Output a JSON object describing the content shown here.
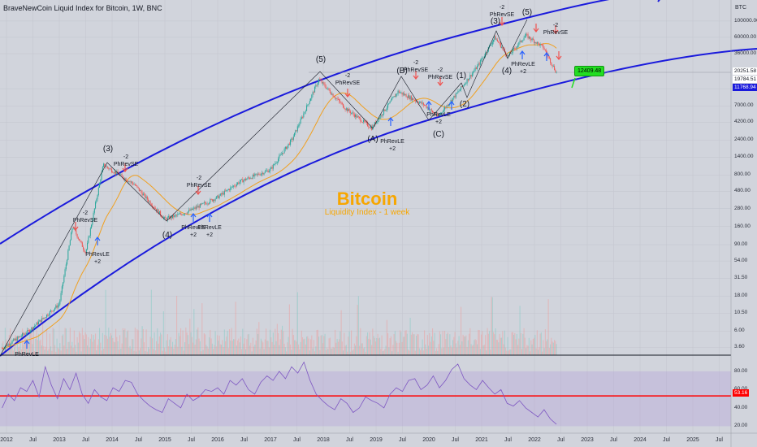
{
  "header": {
    "title": "BraveNewCoin Liquid Index for Bitcoin, 1W, BNC"
  },
  "watermark": {
    "title": "Bitcoin",
    "subtitle": "Liquidity Index - 1 week"
  },
  "colors": {
    "channel": "#1a1adc",
    "ma": "#f0a020",
    "up": "#26a69a",
    "down": "#ef5350",
    "rsi": "#7e57c2",
    "rsi_band": "#b39ddb",
    "rsi_mid": "#ff0000",
    "wave_line": "#131722",
    "callout": "#22dd22"
  },
  "chart_data": [
    {
      "type": "line",
      "title": "BraveNewCoin Liquid Index for Bitcoin, 1W, BNC",
      "y_axis_label": "BTC",
      "y_scale": "log",
      "y_ticks": [
        "100000.00",
        "60000.00",
        "36000.00",
        "12000.00",
        "7000.00",
        "4200.00",
        "2400.00",
        "1400.00",
        "800.00",
        "480.00",
        "280.00",
        "160.00",
        "90.00",
        "54.00",
        "31.50",
        "18.00",
        "10.50",
        "6.00",
        "3.60"
      ],
      "x_ticks": [
        "2012",
        "Jul",
        "2013",
        "Jul",
        "2014",
        "Jul",
        "2015",
        "Jul",
        "2016",
        "Jul",
        "2017",
        "Jul",
        "2018",
        "Jul",
        "2019",
        "Jul",
        "2020",
        "Jul",
        "2021",
        "Jul",
        "2022",
        "Jul",
        "2023",
        "Jul",
        "2024",
        "Jul",
        "2025",
        "Jul"
      ],
      "price_labels": [
        {
          "text": "20251.58",
          "bg": "#ffffff",
          "fg": "#131722",
          "value": 20251.58
        },
        {
          "text": "19784.51",
          "bg": "#ffffff",
          "fg": "#131722",
          "value": 19784.51
        },
        {
          "text": "11768.94",
          "bg": "#1a1adc",
          "fg": "#ffffff",
          "value": 11768.94
        }
      ],
      "callout": "12409.48",
      "series": [
        {
          "name": "",
          "x": [
            "2011-12",
            "2012-06",
            "2013-01",
            "2013-04",
            "2013-07",
            "2013-11",
            "2014-06",
            "2015-01",
            "2015-06",
            "2016-01",
            "2016-06",
            "2017-01",
            "2017-06",
            "2017-12",
            "2018-06",
            "2018-12",
            "2019-06",
            "2019-12",
            "2020-03",
            "2020-08",
            "2020-12",
            "2021-04",
            "2021-07",
            "2021-11",
            "2022-03",
            "2022-06"
          ],
          "values": [
            3.5,
            6,
            14,
            160,
            70,
            1100,
            600,
            200,
            250,
            400,
            650,
            950,
            2500,
            16000,
            6500,
            3500,
            11000,
            7200,
            5000,
            11500,
            24000,
            60000,
            33000,
            64000,
            44000,
            19800
          ]
        }
      ],
      "elliott_labels": [
        "(3)",
        "(4)",
        "(5)",
        "(A)",
        "(B)",
        "(C)",
        "(1)",
        "(2)",
        "(3)",
        "(4)",
        "(5)"
      ],
      "signals": [
        "PhRevLE",
        "PhRevSE",
        "PhRevLE",
        "PhRevSE",
        "PhRevLE",
        "PhRevLE",
        "PhRevSE",
        "PhRevLE",
        "PhRevSE",
        "PhRevSE",
        "PhRevLE",
        "PhRevSE",
        "PhRevSE",
        "PhRevLE",
        "PhRevSE"
      ]
    },
    {
      "type": "line",
      "title": "",
      "y_ticks": [
        "80.00",
        "60.00",
        "40.00",
        "20.00"
      ],
      "y_range": [
        15,
        95
      ],
      "midline": 53.16,
      "midline_label": "53.16",
      "series": [
        {
          "name": "",
          "values": [
            40,
            55,
            48,
            62,
            58,
            70,
            52,
            85,
            65,
            50,
            72,
            60,
            78,
            55,
            45,
            60,
            52,
            48,
            62,
            58,
            70,
            68,
            55,
            48,
            42,
            38,
            35,
            50,
            45,
            40,
            55,
            48,
            52,
            60,
            58,
            62,
            55,
            70,
            65,
            72,
            60,
            55,
            68,
            75,
            70,
            80,
            72,
            85,
            78,
            90,
            70,
            55,
            48,
            42,
            38,
            50,
            45,
            35,
            40,
            52,
            48,
            45,
            40,
            55,
            62,
            58,
            70,
            72,
            60,
            65,
            75,
            62,
            70,
            82,
            88,
            72,
            65,
            60,
            70,
            62,
            55,
            60,
            45,
            42,
            48,
            40,
            35,
            30,
            38,
            28,
            22
          ]
        }
      ]
    }
  ]
}
